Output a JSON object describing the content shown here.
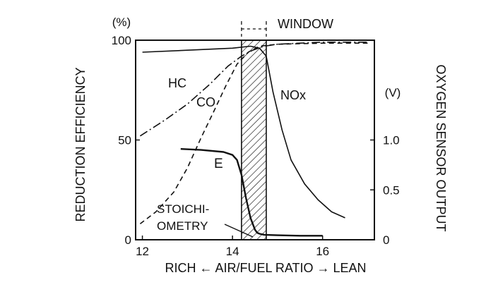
{
  "chart_data": {
    "type": "line",
    "xlabel": "RICH ← AIR/FUEL RATIO → LEAN",
    "ylabel": "REDUCTION EFFICIENCY",
    "ylabel_right": "OXYGEN SENSOR OUTPUT",
    "y_unit": "(%)",
    "y2_unit": "(V)",
    "xlim": [
      11.85,
      17.15
    ],
    "ylim": [
      0,
      100
    ],
    "y2lim": [
      0,
      2.0
    ],
    "x_ticks": [
      "12",
      "14",
      "16"
    ],
    "y_ticks": [
      "0",
      "50",
      "100"
    ],
    "y2_ticks": [
      "0",
      "0.5",
      "1.0"
    ],
    "window_label": "WINDOW",
    "window_x": [
      14.2,
      14.75
    ],
    "stoich_label": [
      "STOICHI-",
      "OMETRY"
    ],
    "series": [
      {
        "name": "HC",
        "style": "dash-dot",
        "x": [
          11.95,
          12.5,
          13.0,
          13.5,
          13.9,
          14.2,
          14.45,
          14.7,
          15.0,
          15.5,
          16.0,
          16.5,
          17.0
        ],
        "y": [
          52,
          60,
          68,
          78,
          87,
          92,
          95,
          97,
          98,
          98.5,
          99,
          99,
          99
        ]
      },
      {
        "name": "CO",
        "style": "dash",
        "x": [
          11.95,
          12.3,
          12.7,
          13.0,
          13.3,
          13.6,
          13.85,
          14.1,
          14.35,
          14.6,
          15.0,
          16.0,
          17.0
        ],
        "y": [
          8,
          14,
          24,
          36,
          51,
          65,
          77,
          88,
          94,
          97,
          98,
          98.5,
          98.5
        ]
      },
      {
        "name": "NOx",
        "style": "solid",
        "x": [
          12.0,
          13.0,
          14.0,
          14.4,
          14.6,
          14.75,
          14.9,
          15.1,
          15.3,
          15.6,
          15.9,
          16.2,
          16.5
        ],
        "y": [
          94,
          95,
          96,
          97,
          96,
          92,
          74,
          55,
          40,
          28,
          20,
          14,
          11
        ]
      },
      {
        "name": "E",
        "style": "solid-bold",
        "axis": "right",
        "x": [
          12.85,
          13.3,
          13.8,
          14.0,
          14.1,
          14.2,
          14.3,
          14.4,
          14.5,
          14.55,
          14.6,
          14.7,
          15.0,
          15.5,
          16.0
        ],
        "y": [
          0.91,
          0.9,
          0.88,
          0.85,
          0.8,
          0.65,
          0.42,
          0.22,
          0.1,
          0.07,
          0.06,
          0.05,
          0.045,
          0.04,
          0.04
        ]
      }
    ]
  }
}
